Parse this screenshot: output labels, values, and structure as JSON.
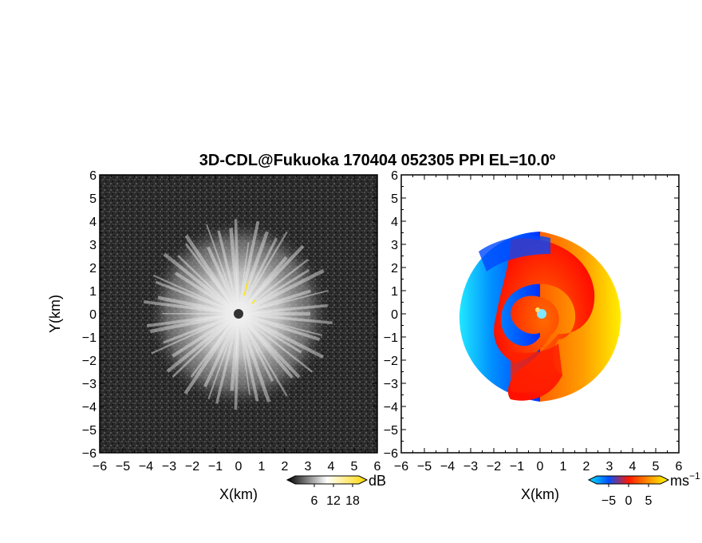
{
  "chart_data": {
    "title": "3D-CDL@Fukuoka 170404 052305 PPI EL=10.0º",
    "panels": [
      {
        "type": "heatmap",
        "quantity": "reflectivity",
        "xlabel": "X(km)",
        "ylabel": "Y(km)",
        "xlim": [
          -6,
          6
        ],
        "ylim": [
          -6,
          6
        ],
        "xticks": [
          "−6",
          "−5",
          "−4",
          "−3",
          "−2",
          "−1",
          "0",
          "1",
          "2",
          "3",
          "4",
          "5",
          "6"
        ],
        "yticks": [
          "−6",
          "−5",
          "−4",
          "−3",
          "−2",
          "−1",
          "0",
          "1",
          "2",
          "3",
          "4",
          "5",
          "6"
        ],
        "colorbar": {
          "unit": "dB",
          "tick_values": [
            6,
            12,
            18
          ],
          "tick_labels": [
            "6",
            "12",
            "18"
          ],
          "range": [
            0,
            20
          ],
          "colors": [
            "#000000",
            "#ffffff",
            "#ffd800"
          ]
        }
      },
      {
        "type": "heatmap",
        "quantity": "doppler velocity",
        "xlabel": "X(km)",
        "ylabel": "",
        "xlim": [
          -6,
          6
        ],
        "ylim": [
          -6,
          6
        ],
        "xticks": [
          "−6",
          "−5",
          "−4",
          "−3",
          "−2",
          "−1",
          "0",
          "1",
          "2",
          "3",
          "4",
          "5",
          "6"
        ],
        "yticks": [
          "−6",
          "−5",
          "−4",
          "−3",
          "−2",
          "−1",
          "0",
          "1",
          "2",
          "3",
          "4",
          "5",
          "6"
        ],
        "colorbar": {
          "unit": "ms",
          "unit_exponent": "−1",
          "tick_values": [
            -5,
            0,
            5
          ],
          "tick_labels": [
            "−5",
            "0",
            "5"
          ],
          "range": [
            -8,
            8
          ],
          "colors": [
            "#00e8ff",
            "#0050ff",
            "#ff1800",
            "#ff9000",
            "#ffff00"
          ]
        }
      }
    ]
  }
}
